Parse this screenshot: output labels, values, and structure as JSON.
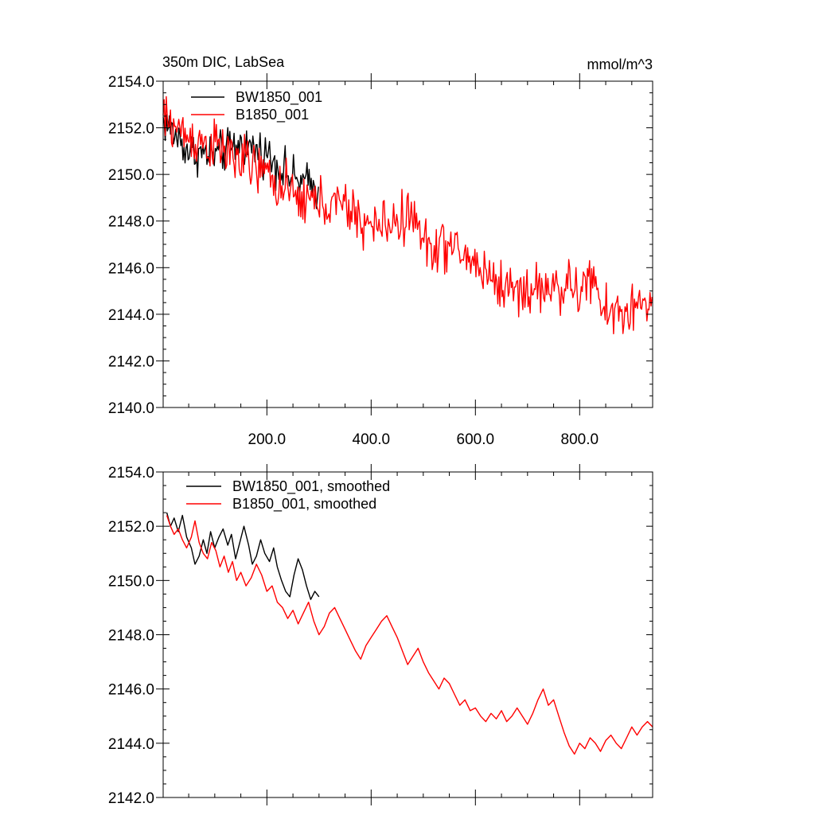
{
  "chart_data": [
    {
      "type": "line",
      "title_left": "350m DIC, LabSea",
      "title_right": "mmol/m^3",
      "xlim": [
        1,
        940
      ],
      "ylim": [
        2140,
        2154
      ],
      "xticks": [
        200,
        400,
        600,
        800
      ],
      "xtick_labels": [
        "200.0",
        "400.0",
        "600.0",
        "800.0"
      ],
      "yticks": [
        2140,
        2142,
        2144,
        2146,
        2148,
        2150,
        2152,
        2154
      ],
      "ytick_labels": [
        "2140.0",
        "2142.0",
        "2144.0",
        "2146.0",
        "2148.0",
        "2150.0",
        "2152.0",
        "2154.0"
      ],
      "legend_position": "top-left",
      "series": [
        {
          "name": "BW1850_001",
          "color": "#000000",
          "x_start": 1,
          "x_end": 300,
          "trend": [
            [
              1,
              2152.3
            ],
            [
              50,
              2151.0
            ],
            [
              100,
              2150.8
            ],
            [
              150,
              2151.3
            ],
            [
              200,
              2150.9
            ],
            [
              250,
              2149.8
            ],
            [
              300,
              2149.4
            ]
          ],
          "noise_amplitude": 0.9
        },
        {
          "name": "B1850_001",
          "color": "#ff0000",
          "x_start": 1,
          "x_end": 940,
          "trend": [
            [
              1,
              2152.4
            ],
            [
              50,
              2151.6
            ],
            [
              100,
              2151.2
            ],
            [
              150,
              2150.6
            ],
            [
              200,
              2150.0
            ],
            [
              250,
              2149.0
            ],
            [
              300,
              2148.8
            ],
            [
              350,
              2148.6
            ],
            [
              400,
              2147.7
            ],
            [
              450,
              2148.0
            ],
            [
              480,
              2148.3
            ],
            [
              500,
              2147.0
            ],
            [
              550,
              2146.9
            ],
            [
              600,
              2146.2
            ],
            [
              650,
              2145.2
            ],
            [
              700,
              2145.0
            ],
            [
              750,
              2145.2
            ],
            [
              800,
              2145.0
            ],
            [
              820,
              2145.6
            ],
            [
              850,
              2144.0
            ],
            [
              900,
              2144.2
            ],
            [
              940,
              2144.6
            ]
          ],
          "noise_amplitude": 1.1
        }
      ]
    },
    {
      "type": "line",
      "xlim": [
        1,
        940
      ],
      "ylim": [
        2142,
        2154
      ],
      "yticks": [
        2142,
        2144,
        2146,
        2148,
        2150,
        2152,
        2154
      ],
      "ytick_labels": [
        "2142.0",
        "2144.0",
        "2146.0",
        "2148.0",
        "2150.0",
        "2152.0",
        "2154.0"
      ],
      "legend_position": "top-left",
      "series": [
        {
          "name": "BW1850_001, smoothed",
          "color": "#000000",
          "x": [
            8,
            15,
            22,
            30,
            38,
            46,
            55,
            62,
            70,
            78,
            85,
            92,
            100,
            108,
            116,
            125,
            132,
            140,
            148,
            156,
            165,
            172,
            180,
            188,
            196,
            205,
            213,
            220,
            228,
            236,
            244,
            252,
            260,
            268,
            276,
            284,
            292,
            300
          ],
          "values": [
            2152.5,
            2152.0,
            2152.3,
            2151.8,
            2152.4,
            2151.6,
            2151.2,
            2150.6,
            2150.9,
            2151.5,
            2151.0,
            2151.8,
            2151.2,
            2151.6,
            2151.9,
            2151.3,
            2151.7,
            2150.8,
            2151.4,
            2152.0,
            2151.3,
            2150.6,
            2150.9,
            2151.5,
            2151.0,
            2150.7,
            2151.2,
            2150.5,
            2150.0,
            2149.6,
            2149.4,
            2150.2,
            2150.8,
            2150.4,
            2149.8,
            2149.3,
            2149.6,
            2149.4
          ]
        },
        {
          "name": "B1850_001, smoothed",
          "color": "#ff0000",
          "x": [
            8,
            15,
            22,
            30,
            38,
            46,
            55,
            62,
            70,
            78,
            86,
            94,
            102,
            110,
            118,
            126,
            134,
            142,
            150,
            160,
            170,
            180,
            190,
            200,
            210,
            220,
            230,
            240,
            250,
            260,
            270,
            280,
            290,
            300,
            310,
            320,
            330,
            340,
            350,
            360,
            370,
            380,
            390,
            400,
            410,
            420,
            430,
            440,
            450,
            460,
            470,
            480,
            490,
            500,
            510,
            520,
            530,
            540,
            550,
            560,
            570,
            580,
            590,
            600,
            610,
            620,
            630,
            640,
            650,
            660,
            670,
            680,
            690,
            700,
            710,
            720,
            730,
            740,
            750,
            760,
            770,
            780,
            790,
            800,
            810,
            820,
            830,
            840,
            850,
            860,
            870,
            880,
            890,
            900,
            910,
            920,
            930,
            940
          ],
          "values": [
            2152.4,
            2152.0,
            2151.7,
            2151.9,
            2151.5,
            2151.2,
            2151.6,
            2152.2,
            2151.4,
            2151.0,
            2150.8,
            2151.4,
            2151.1,
            2150.5,
            2150.9,
            2150.3,
            2150.7,
            2150.0,
            2150.3,
            2149.8,
            2150.1,
            2150.6,
            2150.2,
            2149.6,
            2149.8,
            2149.2,
            2149.0,
            2148.6,
            2148.9,
            2148.4,
            2148.8,
            2149.2,
            2148.5,
            2148.0,
            2148.3,
            2148.8,
            2149.0,
            2148.6,
            2148.2,
            2147.8,
            2147.4,
            2147.1,
            2147.6,
            2147.9,
            2148.2,
            2148.5,
            2148.7,
            2148.3,
            2147.9,
            2147.4,
            2146.9,
            2147.2,
            2147.5,
            2147.0,
            2146.6,
            2146.3,
            2146.0,
            2146.4,
            2146.2,
            2145.8,
            2145.4,
            2145.6,
            2145.2,
            2145.3,
            2145.0,
            2144.8,
            2145.1,
            2144.9,
            2145.2,
            2144.8,
            2145.0,
            2145.3,
            2145.0,
            2144.7,
            2145.1,
            2145.6,
            2146.0,
            2145.4,
            2145.6,
            2145.0,
            2144.4,
            2143.9,
            2143.6,
            2144.0,
            2143.8,
            2144.2,
            2144.0,
            2143.7,
            2144.1,
            2144.3,
            2144.0,
            2143.8,
            2144.2,
            2144.6,
            2144.3,
            2144.6,
            2144.8,
            2144.6
          ]
        }
      ]
    }
  ]
}
